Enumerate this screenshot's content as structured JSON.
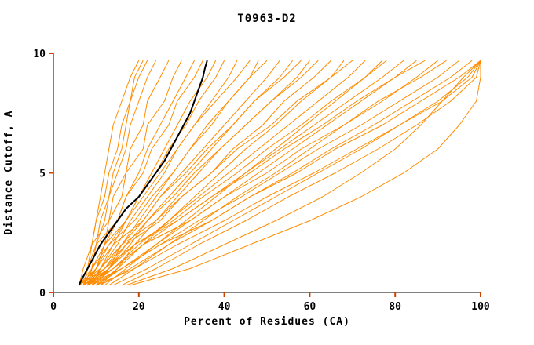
{
  "window": {
    "background": "#ffffff"
  },
  "chart_data": {
    "type": "line",
    "title": "T0963-D2",
    "xlabel": "Percent of Residues (CA)",
    "ylabel": "Distance Cutoff, A",
    "xlim": [
      0,
      100
    ],
    "ylim": [
      0,
      10
    ],
    "x_ticks": [
      0,
      20,
      40,
      60,
      80,
      100
    ],
    "y_ticks": [
      0,
      5,
      10
    ],
    "grid": false,
    "legend": "none",
    "tick_color": "#cc4400",
    "model_series_color": "#ff8c00",
    "model_series_y_grid": [
      0.3,
      1,
      2,
      3,
      4,
      5,
      6,
      7,
      8,
      9,
      9.7
    ],
    "model_series_x": [
      [
        8,
        9,
        10,
        11,
        13,
        14,
        16,
        17,
        18,
        19,
        21
      ],
      [
        7,
        8,
        9,
        10,
        11,
        12,
        13,
        14,
        16,
        18,
        20
      ],
      [
        6,
        7,
        9,
        10,
        12,
        13,
        15,
        16,
        18,
        20,
        22
      ],
      [
        8,
        9,
        10,
        12,
        13,
        15,
        17,
        18,
        20,
        22,
        24
      ],
      [
        6,
        8,
        9,
        13,
        14,
        17,
        18,
        21,
        22,
        25,
        27
      ],
      [
        7,
        9,
        12,
        13,
        16,
        17,
        21,
        22,
        26,
        28,
        30
      ],
      [
        8,
        10,
        12,
        15,
        17,
        20,
        22,
        25,
        28,
        31,
        33
      ],
      [
        6,
        8,
        10,
        15,
        17,
        21,
        23,
        27,
        29,
        33,
        35
      ],
      [
        9,
        11,
        14,
        17,
        20,
        23,
        26,
        29,
        32,
        36,
        38
      ],
      [
        7,
        10,
        12,
        17,
        20,
        24,
        27,
        31,
        34,
        38,
        40
      ],
      [
        8,
        11,
        15,
        18,
        22,
        26,
        29,
        33,
        37,
        41,
        43
      ],
      [
        6,
        9,
        13,
        17,
        21,
        25,
        29,
        33,
        38,
        43,
        46
      ],
      [
        10,
        13,
        16,
        20,
        24,
        28,
        32,
        36,
        41,
        46,
        48
      ],
      [
        7,
        10,
        13,
        19,
        23,
        28,
        32,
        37,
        41,
        46,
        50
      ],
      [
        8,
        12,
        16,
        21,
        25,
        30,
        35,
        40,
        45,
        50,
        53
      ],
      [
        9,
        13,
        18,
        22,
        27,
        32,
        37,
        42,
        47,
        53,
        56
      ],
      [
        6,
        10,
        14,
        21,
        25,
        31,
        36,
        42,
        47,
        54,
        58
      ],
      [
        11,
        15,
        19,
        24,
        29,
        34,
        39,
        45,
        51,
        57,
        60
      ],
      [
        7,
        12,
        17,
        22,
        28,
        33,
        39,
        45,
        51,
        58,
        62
      ],
      [
        8,
        13,
        17,
        25,
        30,
        37,
        42,
        49,
        54,
        61,
        65
      ],
      [
        10,
        15,
        21,
        27,
        33,
        39,
        45,
        52,
        58,
        65,
        68
      ],
      [
        6,
        11,
        16,
        24,
        30,
        37,
        43,
        51,
        57,
        65,
        70
      ],
      [
        9,
        14,
        20,
        27,
        34,
        41,
        48,
        55,
        62,
        69,
        73
      ],
      [
        12,
        17,
        24,
        31,
        38,
        45,
        52,
        59,
        66,
        73,
        77
      ],
      [
        7,
        13,
        19,
        28,
        35,
        43,
        50,
        58,
        65,
        73,
        78
      ],
      [
        8,
        14,
        21,
        29,
        37,
        45,
        53,
        61,
        69,
        77,
        82
      ],
      [
        10,
        16,
        24,
        32,
        40,
        48,
        56,
        64,
        72,
        80,
        85
      ],
      [
        6,
        12,
        19,
        29,
        37,
        46,
        54,
        63,
        71,
        80,
        87
      ],
      [
        13,
        19,
        27,
        35,
        43,
        52,
        60,
        68,
        77,
        85,
        90
      ],
      [
        7,
        14,
        21,
        32,
        40,
        50,
        58,
        68,
        76,
        86,
        92
      ],
      [
        9,
        16,
        25,
        34,
        44,
        53,
        62,
        72,
        81,
        90,
        95
      ],
      [
        11,
        18,
        27,
        37,
        46,
        56,
        65,
        75,
        84,
        93,
        98
      ],
      [
        8,
        16,
        25,
        37,
        46,
        57,
        66,
        77,
        86,
        95,
        100
      ],
      [
        14,
        22,
        32,
        42,
        52,
        62,
        72,
        81,
        90,
        97,
        100
      ],
      [
        10,
        19,
        29,
        40,
        50,
        61,
        71,
        81,
        91,
        98,
        100
      ],
      [
        16,
        24,
        34,
        45,
        55,
        66,
        76,
        85,
        93,
        99,
        100
      ],
      [
        17,
        28,
        40,
        52,
        63,
        72,
        80,
        86,
        91,
        96,
        100
      ],
      [
        18,
        32,
        46,
        60,
        72,
        82,
        90,
        95,
        99,
        100,
        100
      ]
    ],
    "highlight_series": {
      "name": "best-model-black-curve",
      "color": "#000000",
      "y": [
        0.3,
        0.5,
        1,
        1.5,
        2,
        2.5,
        3,
        3.5,
        4,
        4.5,
        5,
        5.5,
        6,
        6.5,
        7,
        7.5,
        8,
        8.5,
        9,
        9.4,
        9.7
      ],
      "x": [
        6,
        6.5,
        8,
        9.5,
        11,
        13,
        15,
        17,
        20,
        22,
        24,
        26,
        27.5,
        29,
        30.5,
        32,
        33,
        34,
        35,
        35.5,
        36
      ]
    }
  }
}
